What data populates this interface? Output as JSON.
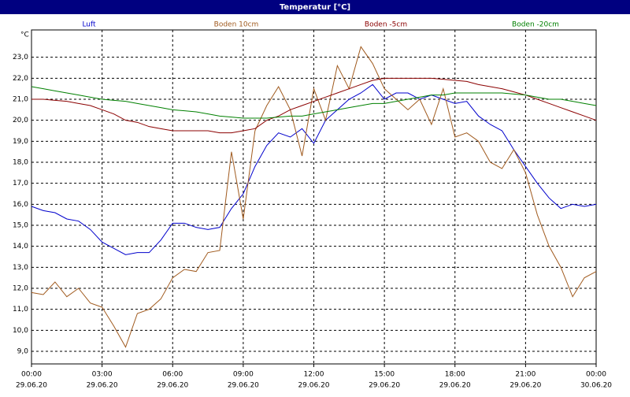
{
  "chart_data": {
    "type": "line",
    "title": "Temperatur [°C]",
    "y_unit": "°C",
    "x": [
      0,
      0.5,
      1,
      1.5,
      2,
      2.5,
      3,
      3.5,
      4,
      4.5,
      5,
      5.5,
      6,
      6.5,
      7,
      7.5,
      8,
      8.5,
      9,
      9.5,
      10,
      10.5,
      11,
      11.5,
      12,
      12.5,
      13,
      13.5,
      14,
      14.5,
      15,
      15.5,
      16,
      16.5,
      17,
      17.5,
      18,
      18.5,
      19,
      19.5,
      20,
      20.5,
      21,
      21.5,
      22,
      22.5,
      23,
      23.5,
      24
    ],
    "xlim": [
      0,
      24
    ],
    "xticks": [
      {
        "value": 0,
        "label": [
          "00:00",
          "29.06.20"
        ]
      },
      {
        "value": 3,
        "label": [
          "03:00",
          "29.06.20"
        ]
      },
      {
        "value": 6,
        "label": [
          "06:00",
          "29.06.20"
        ]
      },
      {
        "value": 9,
        "label": [
          "09:00",
          "29.06.20"
        ]
      },
      {
        "value": 12,
        "label": [
          "12:00",
          "29.06.20"
        ]
      },
      {
        "value": 15,
        "label": [
          "15:00",
          "29.06.20"
        ]
      },
      {
        "value": 18,
        "label": [
          "18:00",
          "29.06.20"
        ]
      },
      {
        "value": 21,
        "label": [
          "21:00",
          "29.06.20"
        ]
      },
      {
        "value": 24,
        "label": [
          "00:00",
          "30.06.20"
        ]
      }
    ],
    "ylim": [
      8.4,
      24.3
    ],
    "yticks": [
      {
        "value": 9,
        "label": "9,0"
      },
      {
        "value": 10,
        "label": "10,0"
      },
      {
        "value": 11,
        "label": "11,0"
      },
      {
        "value": 12,
        "label": "12,0"
      },
      {
        "value": 13,
        "label": "13,0"
      },
      {
        "value": 14,
        "label": "14,0"
      },
      {
        "value": 15,
        "label": "15,0"
      },
      {
        "value": 16,
        "label": "16,0"
      },
      {
        "value": 17,
        "label": "17,0"
      },
      {
        "value": 18,
        "label": "18,0"
      },
      {
        "value": 19,
        "label": "19,0"
      },
      {
        "value": 20,
        "label": "20,0"
      },
      {
        "value": 21,
        "label": "21,0"
      },
      {
        "value": 22,
        "label": "22,0"
      },
      {
        "value": 23,
        "label": "23,0"
      }
    ],
    "grid": true,
    "series": [
      {
        "name": "Luft",
        "color": "#0000cc",
        "values": [
          15.9,
          15.7,
          15.6,
          15.3,
          15.2,
          14.8,
          14.2,
          13.9,
          13.6,
          13.7,
          13.7,
          14.3,
          15.1,
          15.1,
          14.9,
          14.8,
          14.9,
          15.8,
          16.5,
          17.8,
          18.8,
          19.4,
          19.2,
          19.6,
          18.9,
          20.0,
          20.5,
          21.0,
          21.3,
          21.7,
          21.0,
          21.3,
          21.3,
          21.0,
          21.2,
          21.0,
          20.8,
          20.9,
          20.2,
          19.8,
          19.5,
          18.6,
          17.8,
          17.0,
          16.3,
          15.8,
          16.0,
          15.9,
          16.0
        ]
      },
      {
        "name": "Boden 10cm",
        "color": "#a05a1e",
        "values": [
          11.8,
          11.7,
          12.3,
          11.6,
          12.0,
          11.3,
          11.1,
          10.2,
          9.2,
          10.8,
          11.0,
          11.5,
          12.5,
          12.9,
          12.8,
          13.7,
          13.8,
          18.5,
          15.3,
          19.5,
          20.7,
          21.6,
          20.5,
          18.3,
          21.5,
          20.0,
          22.6,
          21.5,
          23.5,
          22.7,
          21.5,
          21.0,
          20.5,
          21.0,
          19.8,
          21.5,
          19.2,
          19.4,
          19.0,
          18.0,
          17.7,
          18.6,
          17.5,
          15.5,
          14.0,
          13.0,
          11.6,
          12.5,
          12.8
        ]
      },
      {
        "name": "Boden -5cm",
        "color": "#8b0000",
        "values": [
          21.0,
          21.0,
          20.95,
          20.9,
          20.8,
          20.7,
          20.5,
          20.3,
          20.0,
          19.9,
          19.7,
          19.6,
          19.5,
          19.5,
          19.5,
          19.5,
          19.4,
          19.4,
          19.5,
          19.6,
          20.0,
          20.2,
          20.5,
          20.7,
          20.9,
          21.1,
          21.3,
          21.5,
          21.7,
          21.9,
          22.0,
          22.0,
          22.0,
          22.0,
          22.0,
          21.95,
          21.9,
          21.85,
          21.7,
          21.6,
          21.5,
          21.35,
          21.2,
          21.0,
          20.8,
          20.6,
          20.4,
          20.2,
          20.0
        ]
      },
      {
        "name": "Boden -20cm",
        "color": "#008000",
        "values": [
          21.6,
          21.5,
          21.4,
          21.3,
          21.2,
          21.1,
          21.0,
          20.95,
          20.9,
          20.8,
          20.7,
          20.6,
          20.5,
          20.45,
          20.4,
          20.3,
          20.2,
          20.15,
          20.1,
          20.1,
          20.1,
          20.15,
          20.2,
          20.2,
          20.3,
          20.4,
          20.5,
          20.6,
          20.7,
          20.8,
          20.8,
          20.9,
          21.0,
          21.1,
          21.2,
          21.2,
          21.3,
          21.3,
          21.3,
          21.3,
          21.3,
          21.25,
          21.2,
          21.1,
          21.0,
          21.0,
          20.9,
          20.8,
          20.7
        ]
      }
    ]
  }
}
